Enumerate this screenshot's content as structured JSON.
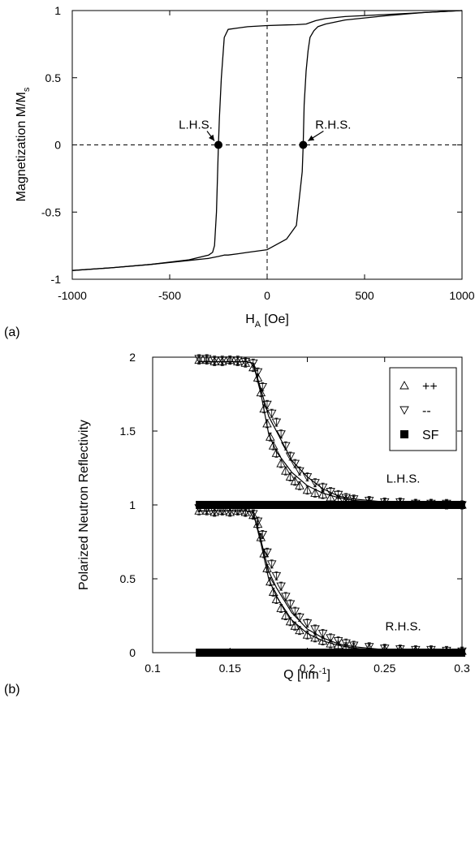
{
  "chart_data": [
    {
      "panel_label": "(a)",
      "type": "line",
      "xlabel": "H",
      "xlabel_sub": "A",
      "xlabel_unit": " [Oe]",
      "ylabel": "Magnetization M/M",
      "ylabel_sub": "s",
      "xlim": [
        -1000,
        1000
      ],
      "ylim": [
        -1,
        1
      ],
      "xticks": [
        -1000,
        -500,
        0,
        500,
        1000
      ],
      "yticks": [
        -1,
        -0.5,
        0,
        0.5,
        1
      ],
      "xtick_labels": [
        "-1000",
        "-500",
        "0",
        "500",
        "1000"
      ],
      "ytick_labels": [
        "-1",
        "-0.5",
        "0",
        "0.5",
        "1"
      ],
      "series": [
        {
          "values_desc": "descending branch",
          "x": [
            1000,
            800,
            600,
            400,
            300,
            250,
            220,
            200,
            150,
            100,
            0,
            -100,
            -150,
            -200,
            -220,
            -235,
            -245,
            -250,
            -255,
            -260,
            -270,
            -280,
            -300,
            -400,
            -600,
            -800,
            -1000
          ],
          "y": [
            1.0,
            0.985,
            0.97,
            0.955,
            0.94,
            0.925,
            0.91,
            0.9,
            0.895,
            0.893,
            0.888,
            0.88,
            0.87,
            0.86,
            0.8,
            0.5,
            0.2,
            0.0,
            -0.25,
            -0.5,
            -0.75,
            -0.8,
            -0.82,
            -0.855,
            -0.89,
            -0.915,
            -0.935
          ]
        },
        {
          "values_desc": "ascending branch",
          "x": [
            -1000,
            -800,
            -600,
            -400,
            -300,
            -250,
            -220,
            -200,
            -150,
            -100,
            0,
            100,
            150,
            180,
            185,
            190,
            200,
            210,
            220,
            240,
            260,
            300,
            400,
            600,
            800,
            1000
          ],
          "y": [
            -0.935,
            -0.915,
            -0.89,
            -0.86,
            -0.845,
            -0.83,
            -0.82,
            -0.82,
            -0.81,
            -0.8,
            -0.78,
            -0.7,
            -0.6,
            -0.2,
            0.0,
            0.3,
            0.55,
            0.7,
            0.8,
            0.85,
            0.88,
            0.9,
            0.93,
            0.96,
            0.985,
            1.0
          ]
        }
      ],
      "markers": [
        {
          "label": "L.H.S.",
          "x": -250,
          "y": 0
        },
        {
          "label": "R.H.S.",
          "x": 185,
          "y": 0
        }
      ],
      "grid": false
    },
    {
      "panel_label": "(b)",
      "type": "scatter",
      "xlabel": "Q [nm",
      "xlabel_sup": "-1",
      "xlabel_end": "]",
      "ylabel": "Polarized Neutron Reflectivity",
      "xlim": [
        0.1,
        0.3
      ],
      "ylim": [
        0,
        2
      ],
      "xticks": [
        0.1,
        0.15,
        0.2,
        0.25,
        0.3
      ],
      "yticks": [
        0,
        0.5,
        1,
        1.5,
        2
      ],
      "xtick_labels": [
        "0.1",
        "0.15",
        "0.2",
        "0.25",
        "0.3"
      ],
      "ytick_labels": [
        "0",
        "0.5",
        "1",
        "1.5",
        "2"
      ],
      "legend": [
        {
          "label": "++",
          "marker": "triangle-up-open"
        },
        {
          "label": "--",
          "marker": "triangle-down-open"
        },
        {
          "label": "SF",
          "marker": "square-filled"
        }
      ],
      "legend_position": "top-right",
      "curve_labels": [
        {
          "text": "L.H.S.",
          "x": 0.262,
          "y": 1.15
        },
        {
          "text": "R.H.S.",
          "x": 0.262,
          "y": 0.15
        }
      ],
      "series": [
        {
          "name": "++",
          "group": "L.H.S.",
          "x": [
            0.13,
            0.135,
            0.14,
            0.145,
            0.15,
            0.155,
            0.16,
            0.165,
            0.168,
            0.17,
            0.172,
            0.174,
            0.176,
            0.178,
            0.18,
            0.183,
            0.186,
            0.189,
            0.192,
            0.195,
            0.2,
            0.205,
            0.21,
            0.215,
            0.22,
            0.225,
            0.23,
            0.24,
            0.25,
            0.26,
            0.27,
            0.28,
            0.29,
            0.3
          ],
          "y": [
            1.98,
            1.98,
            1.97,
            1.97,
            1.98,
            1.97,
            1.96,
            1.93,
            1.86,
            1.76,
            1.65,
            1.55,
            1.46,
            1.4,
            1.35,
            1.28,
            1.23,
            1.19,
            1.16,
            1.13,
            1.1,
            1.08,
            1.07,
            1.05,
            1.04,
            1.035,
            1.03,
            1.02,
            1.015,
            1.01,
            1.01,
            1.01,
            1.0,
            1.0
          ]
        },
        {
          "name": "--",
          "group": "L.H.S.",
          "x": [
            0.13,
            0.135,
            0.14,
            0.145,
            0.15,
            0.155,
            0.16,
            0.165,
            0.168,
            0.171,
            0.174,
            0.177,
            0.18,
            0.183,
            0.186,
            0.189,
            0.192,
            0.195,
            0.2,
            0.205,
            0.21,
            0.215,
            0.22,
            0.225,
            0.23,
            0.24,
            0.25,
            0.26,
            0.27,
            0.28,
            0.29,
            0.3
          ],
          "y": [
            1.99,
            1.99,
            1.98,
            1.98,
            1.98,
            1.98,
            1.97,
            1.96,
            1.9,
            1.8,
            1.68,
            1.62,
            1.56,
            1.48,
            1.4,
            1.33,
            1.28,
            1.23,
            1.19,
            1.15,
            1.12,
            1.09,
            1.07,
            1.05,
            1.04,
            1.03,
            1.02,
            1.02,
            1.01,
            1.01,
            1.01,
            1.0
          ]
        },
        {
          "name": "SF",
          "group": "L.H.S.",
          "x": [
            0.13,
            0.14,
            0.15,
            0.16,
            0.17,
            0.18,
            0.19,
            0.2,
            0.21,
            0.22,
            0.23,
            0.24,
            0.25,
            0.26,
            0.27,
            0.28,
            0.29,
            0.3
          ],
          "y": [
            1.0,
            1.0,
            1.0,
            1.0,
            1.0,
            1.0,
            1.0,
            1.0,
            1.0,
            1.0,
            1.0,
            1.0,
            1.0,
            1.0,
            1.0,
            1.0,
            1.0,
            1.0
          ]
        },
        {
          "name": "++",
          "group": "R.H.S.",
          "x": [
            0.13,
            0.135,
            0.14,
            0.145,
            0.15,
            0.155,
            0.16,
            0.165,
            0.168,
            0.17,
            0.172,
            0.174,
            0.176,
            0.178,
            0.18,
            0.183,
            0.186,
            0.189,
            0.192,
            0.195,
            0.2,
            0.205,
            0.21,
            0.215,
            0.22,
            0.225,
            0.23,
            0.24,
            0.25,
            0.26,
            0.27,
            0.28,
            0.29,
            0.3
          ],
          "y": [
            0.96,
            0.96,
            0.95,
            0.96,
            0.95,
            0.96,
            0.95,
            0.93,
            0.87,
            0.78,
            0.67,
            0.57,
            0.48,
            0.41,
            0.36,
            0.3,
            0.25,
            0.21,
            0.18,
            0.15,
            0.12,
            0.1,
            0.08,
            0.06,
            0.05,
            0.04,
            0.035,
            0.03,
            0.02,
            0.02,
            0.015,
            0.01,
            0.01,
            0.01
          ]
        },
        {
          "name": "--",
          "group": "R.H.S.",
          "x": [
            0.13,
            0.135,
            0.14,
            0.145,
            0.15,
            0.155,
            0.16,
            0.165,
            0.168,
            0.171,
            0.174,
            0.177,
            0.18,
            0.183,
            0.186,
            0.189,
            0.192,
            0.195,
            0.2,
            0.205,
            0.21,
            0.215,
            0.22,
            0.225,
            0.23,
            0.24,
            0.25,
            0.26,
            0.27,
            0.28,
            0.29,
            0.3
          ],
          "y": [
            0.98,
            0.97,
            0.96,
            0.96,
            0.96,
            0.96,
            0.95,
            0.94,
            0.89,
            0.8,
            0.68,
            0.6,
            0.52,
            0.45,
            0.38,
            0.33,
            0.28,
            0.24,
            0.2,
            0.16,
            0.13,
            0.1,
            0.08,
            0.065,
            0.05,
            0.04,
            0.03,
            0.025,
            0.02,
            0.02,
            0.015,
            0.01
          ]
        },
        {
          "name": "SF",
          "group": "R.H.S.",
          "x": [
            0.13,
            0.14,
            0.15,
            0.16,
            0.17,
            0.18,
            0.19,
            0.2,
            0.21,
            0.22,
            0.23,
            0.24,
            0.25,
            0.26,
            0.27,
            0.28,
            0.29,
            0.3
          ],
          "y": [
            0.0,
            0.0,
            0.0,
            0.0,
            0.0,
            0.0,
            0.0,
            0.0,
            0.0,
            0.0,
            0.0,
            0.0,
            0.0,
            0.0,
            0.0,
            0.0,
            0.0,
            0.0
          ]
        }
      ],
      "fit_lines": [
        {
          "group": "L.H.S.",
          "x": [
            0.13,
            0.16,
            0.165,
            0.17,
            0.175,
            0.18,
            0.19,
            0.2,
            0.21,
            0.22,
            0.23,
            0.25,
            0.27,
            0.3
          ],
          "y": [
            1.97,
            1.97,
            1.96,
            1.75,
            1.48,
            1.36,
            1.22,
            1.13,
            1.08,
            1.05,
            1.03,
            1.015,
            1.005,
            1.0
          ]
        },
        {
          "group": "L.H.S.",
          "x": [
            0.13,
            0.16,
            0.165,
            0.17,
            0.175,
            0.18,
            0.19,
            0.2,
            0.21,
            0.22,
            0.23,
            0.25,
            0.27,
            0.3
          ],
          "y": [
            1.97,
            1.97,
            1.96,
            1.78,
            1.6,
            1.5,
            1.3,
            1.19,
            1.11,
            1.06,
            1.04,
            1.02,
            1.01,
            1.0
          ]
        },
        {
          "group": "R.H.S.",
          "x": [
            0.13,
            0.16,
            0.165,
            0.17,
            0.175,
            0.18,
            0.19,
            0.2,
            0.21,
            0.22,
            0.23,
            0.25,
            0.27,
            0.3
          ],
          "y": [
            0.96,
            0.96,
            0.95,
            0.74,
            0.5,
            0.38,
            0.22,
            0.13,
            0.08,
            0.05,
            0.03,
            0.015,
            0.008,
            0.0
          ]
        },
        {
          "group": "R.H.S.",
          "x": [
            0.13,
            0.16,
            0.165,
            0.17,
            0.175,
            0.18,
            0.19,
            0.2,
            0.21,
            0.22,
            0.23,
            0.25,
            0.27,
            0.3
          ],
          "y": [
            0.96,
            0.96,
            0.95,
            0.76,
            0.55,
            0.44,
            0.27,
            0.16,
            0.1,
            0.06,
            0.04,
            0.02,
            0.01,
            0.0
          ]
        }
      ],
      "grid": false
    }
  ]
}
